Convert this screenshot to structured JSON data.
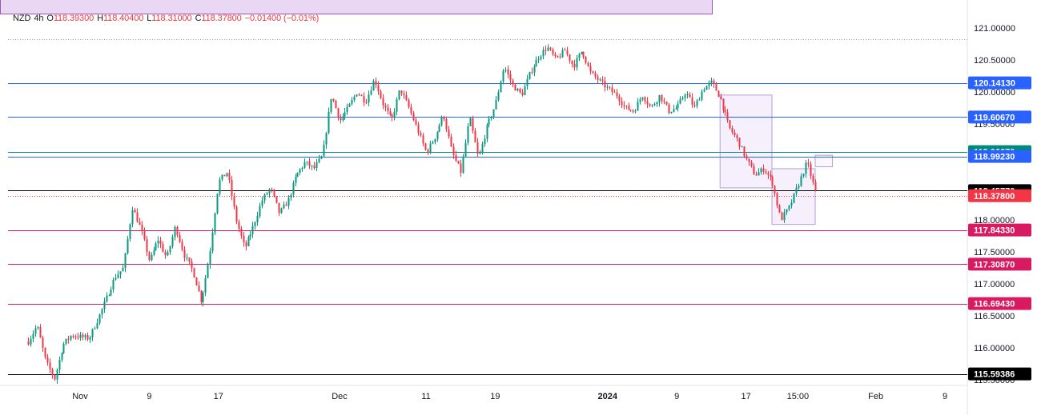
{
  "header": {
    "symbol": "NZD",
    "interval": "4h",
    "open_label": "O",
    "open": "118.39300",
    "high_label": "H",
    "high": "118.40400",
    "low_label": "L",
    "low": "118.31000",
    "close_label": "C",
    "close": "118.37800",
    "change": "−0.01400 (−0.01%)"
  },
  "colors": {
    "up": "#089981",
    "down": "#f23645",
    "blue_line": "#2962ff",
    "teal_line": "#00897b",
    "crimson_line": "#d81b60",
    "black_line": "#000000",
    "zone_fill": "#ede3f7",
    "zone_stroke": "#b39ddb"
  },
  "chart_data": {
    "type": "candlestick",
    "title": "",
    "xlabel": "",
    "ylabel": "",
    "ylim": [
      115.44,
      121.21
    ],
    "y_ticks": [
      "121.00000",
      "120.50000",
      "120.00000",
      "119.50000",
      "119.00000",
      "118.00000",
      "117.50000",
      "117.00000",
      "116.50000",
      "116.00000",
      "115.50000"
    ],
    "x_ticks": [
      {
        "label": "Nov",
        "date": "2023-11-01"
      },
      {
        "label": "9",
        "date": "2023-11-09"
      },
      {
        "label": "17",
        "date": "2023-11-17"
      },
      {
        "label": "Dec",
        "date": "2023-12-01"
      },
      {
        "label": "11",
        "date": "2023-12-11"
      },
      {
        "label": "19",
        "date": "2023-12-19"
      },
      {
        "label": "2024",
        "date": "2024-01-01"
      },
      {
        "label": "9",
        "date": "2024-01-09"
      },
      {
        "label": "17",
        "date": "2024-01-17"
      },
      {
        "label": "15:00",
        "date": "2024-01-23"
      },
      {
        "label": "Feb",
        "date": "2024-02-01"
      },
      {
        "label": "9",
        "date": "2024-02-09"
      }
    ],
    "series": [
      {
        "x_start": "2023-10-26",
        "x_end": "2024-01-25",
        "close_path": [
          [
            "2023-10-26",
            116.1
          ],
          [
            "2023-10-27",
            116.35
          ],
          [
            "2023-10-28",
            115.78
          ],
          [
            "2023-10-29",
            115.52
          ],
          [
            "2023-10-30",
            116.05
          ],
          [
            "2023-10-31",
            116.2
          ],
          [
            "2023-11-02",
            116.15
          ],
          [
            "2023-11-03",
            116.45
          ],
          [
            "2023-11-05",
            117.1
          ],
          [
            "2023-11-06",
            117.25
          ],
          [
            "2023-11-07",
            118.2
          ],
          [
            "2023-11-08",
            117.85
          ],
          [
            "2023-11-09",
            117.35
          ],
          [
            "2023-11-10",
            117.7
          ],
          [
            "2023-11-11",
            117.4
          ],
          [
            "2023-11-12",
            117.9
          ],
          [
            "2023-11-13",
            117.45
          ],
          [
            "2023-11-14",
            117.2
          ],
          [
            "2023-11-15",
            116.72
          ],
          [
            "2023-11-16",
            117.5
          ],
          [
            "2023-11-17",
            118.6
          ],
          [
            "2023-11-18",
            118.75
          ],
          [
            "2023-11-19",
            118.0
          ],
          [
            "2023-11-20",
            117.55
          ],
          [
            "2023-11-21",
            117.9
          ],
          [
            "2023-11-22",
            118.3
          ],
          [
            "2023-11-23",
            118.5
          ],
          [
            "2023-11-24",
            118.1
          ],
          [
            "2023-11-25",
            118.3
          ],
          [
            "2023-11-26",
            118.7
          ],
          [
            "2023-11-27",
            118.9
          ],
          [
            "2023-11-28",
            118.8
          ],
          [
            "2023-11-29",
            119.0
          ],
          [
            "2023-11-30",
            119.95
          ],
          [
            "2023-12-01",
            119.55
          ],
          [
            "2023-12-02",
            119.75
          ],
          [
            "2023-12-03",
            120.0
          ],
          [
            "2023-12-04",
            119.85
          ],
          [
            "2023-12-05",
            120.2
          ],
          [
            "2023-12-06",
            119.8
          ],
          [
            "2023-12-07",
            119.55
          ],
          [
            "2023-12-08",
            120.05
          ],
          [
            "2023-12-09",
            119.75
          ],
          [
            "2023-12-10",
            119.4
          ],
          [
            "2023-12-11",
            119.05
          ],
          [
            "2023-12-12",
            119.3
          ],
          [
            "2023-12-13",
            119.65
          ],
          [
            "2023-12-14",
            119.05
          ],
          [
            "2023-12-15",
            118.75
          ],
          [
            "2023-12-16",
            119.6
          ],
          [
            "2023-12-17",
            118.95
          ],
          [
            "2023-12-18",
            119.45
          ],
          [
            "2023-12-19",
            119.8
          ],
          [
            "2023-12-20",
            120.4
          ],
          [
            "2023-12-21",
            120.1
          ],
          [
            "2023-12-22",
            119.95
          ],
          [
            "2023-12-23",
            120.3
          ],
          [
            "2023-12-24",
            120.55
          ],
          [
            "2023-12-25",
            120.7
          ],
          [
            "2023-12-26",
            120.5
          ],
          [
            "2023-12-27",
            120.65
          ],
          [
            "2023-12-28",
            120.4
          ],
          [
            "2023-12-29",
            120.65
          ],
          [
            "2023-12-30",
            120.3
          ],
          [
            "2024-01-01",
            120.05
          ],
          [
            "2024-01-02",
            119.95
          ],
          [
            "2024-01-03",
            119.75
          ],
          [
            "2024-01-04",
            119.7
          ],
          [
            "2024-01-05",
            119.95
          ],
          [
            "2024-01-06",
            119.75
          ],
          [
            "2024-01-07",
            119.95
          ],
          [
            "2024-01-08",
            119.7
          ],
          [
            "2024-01-09",
            119.75
          ],
          [
            "2024-01-10",
            120.0
          ],
          [
            "2024-01-11",
            119.75
          ],
          [
            "2024-01-12",
            120.05
          ],
          [
            "2024-01-13",
            120.15
          ],
          [
            "2024-01-14",
            119.9
          ],
          [
            "2024-01-15",
            119.45
          ],
          [
            "2024-01-16",
            119.25
          ],
          [
            "2024-01-17",
            118.95
          ],
          [
            "2024-01-18",
            118.7
          ],
          [
            "2024-01-19",
            118.8
          ],
          [
            "2024-01-20",
            118.6
          ],
          [
            "2024-01-21",
            118.0
          ],
          [
            "2024-01-22",
            118.2
          ],
          [
            "2024-01-23",
            118.55
          ],
          [
            "2024-01-24",
            118.9
          ],
          [
            "2024-01-25",
            118.42
          ]
        ]
      }
    ],
    "horizontal_levels": [
      {
        "value": 120.1413,
        "label": "120.14130",
        "color": "#2962ff"
      },
      {
        "value": 119.6067,
        "label": "119.60670",
        "color": "#2962ff"
      },
      {
        "value": 119.0667,
        "label": "119.06670",
        "color": "#00897b"
      },
      {
        "value": 118.9923,
        "label": "118.99230",
        "color": "#2962ff"
      },
      {
        "value": 118.4577,
        "label": "118.45770",
        "color": "#000000"
      },
      {
        "value": 118.378,
        "label": "118.37800",
        "color": "#f23645",
        "dotted": true
      },
      {
        "value": 117.8433,
        "label": "117.84330",
        "color": "#d81b60"
      },
      {
        "value": 117.3087,
        "label": "117.30870",
        "color": "#d81b60"
      },
      {
        "value": 116.6943,
        "label": "116.69430",
        "color": "#d81b60"
      },
      {
        "value": 115.59386,
        "label": "115.59386",
        "color": "#000000"
      },
      {
        "value": 120.82,
        "label": "",
        "color": "#9e9e9e",
        "dotted": true
      }
    ],
    "zones": [
      {
        "from": "2024-01-14",
        "to": "2024-01-20",
        "top": 119.95,
        "bottom": 118.5
      },
      {
        "from": "2024-01-20",
        "to": "2024-01-25",
        "top": 118.8,
        "bottom": 117.93
      },
      {
        "from": "2024-01-25",
        "to": "2024-01-27",
        "top": 119.01,
        "bottom": 118.83
      }
    ]
  }
}
